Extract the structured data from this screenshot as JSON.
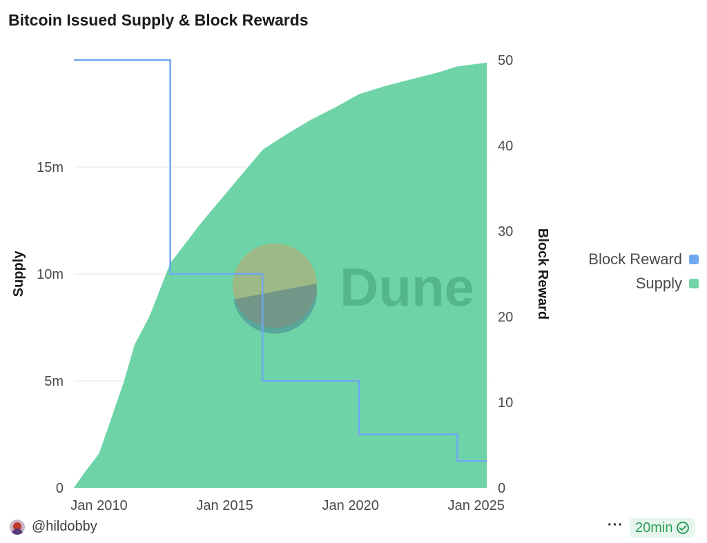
{
  "title": "Bitcoin Issued Supply & Block Rewards",
  "chart_data": {
    "type": "area",
    "title": "Bitcoin Issued Supply & Block Rewards",
    "x_ticks": [
      "Jan 2010",
      "Jan 2015",
      "Jan 2020",
      "Jan 2025"
    ],
    "y_left": {
      "label": "Supply",
      "ticks": [
        "0",
        "5m",
        "10m",
        "15m"
      ],
      "range": [
        0,
        20000000
      ]
    },
    "y_right": {
      "label": "Block Reward",
      "ticks": [
        "0",
        "10",
        "20",
        "30",
        "40",
        "50"
      ],
      "range": [
        0,
        50
      ]
    },
    "legend_position": "right",
    "grid": true,
    "series": [
      {
        "name": "Supply",
        "type": "area",
        "axis": "left",
        "color": "#6fd3a8",
        "points": [
          [
            "2009-01",
            0
          ],
          [
            "2009-06",
            700000
          ],
          [
            "2010-01",
            1600000
          ],
          [
            "2010-06",
            3000000
          ],
          [
            "2011-01",
            5000000
          ],
          [
            "2011-06",
            6700000
          ],
          [
            "2012-01",
            8000000
          ],
          [
            "2012-11",
            10500000
          ],
          [
            "2013-06",
            11400000
          ],
          [
            "2014-01",
            12300000
          ],
          [
            "2015-01",
            13700000
          ],
          [
            "2016-07",
            15800000
          ],
          [
            "2017-06",
            16500000
          ],
          [
            "2018-06",
            17200000
          ],
          [
            "2019-06",
            17800000
          ],
          [
            "2020-05",
            18400000
          ],
          [
            "2021-06",
            18800000
          ],
          [
            "2022-06",
            19100000
          ],
          [
            "2023-06",
            19400000
          ],
          [
            "2024-04",
            19700000
          ],
          [
            "2025-06",
            19880000
          ]
        ]
      },
      {
        "name": "Block Reward",
        "type": "step",
        "axis": "right",
        "color": "#6ea8ef",
        "points": [
          [
            "2009-01",
            50
          ],
          [
            "2012-11",
            50
          ],
          [
            "2012-11",
            25
          ],
          [
            "2016-07",
            25
          ],
          [
            "2016-07",
            12.5
          ],
          [
            "2020-05",
            12.5
          ],
          [
            "2020-05",
            6.25
          ],
          [
            "2024-04",
            6.25
          ],
          [
            "2024-04",
            3.125
          ],
          [
            "2025-06",
            3.125
          ]
        ]
      }
    ]
  },
  "legend": [
    {
      "label": "Block Reward",
      "color": "#6ea8ef"
    },
    {
      "label": "Supply",
      "color": "#6fd3a8"
    }
  ],
  "watermark": "Dune",
  "footer": {
    "user": "@hildobby",
    "more": "···",
    "refresh": "20min"
  }
}
